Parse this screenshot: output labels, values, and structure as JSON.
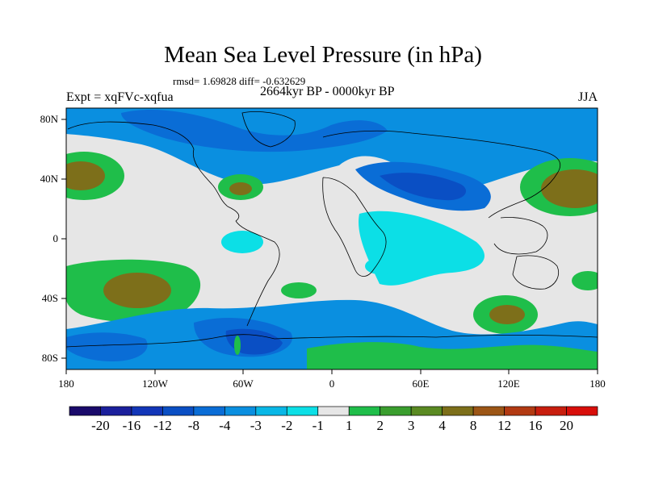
{
  "title": "Mean Sea Level Pressure (in hPa)",
  "stats_line": "rmsd= 1.69828 diff= -0.632629",
  "period": "2664kyr BP - 0000kyr BP",
  "experiment": "Expt = xqFVc-xqfua",
  "season": "JJA",
  "axes": {
    "lat_labels": [
      "80N",
      "40N",
      "0",
      "40S",
      "80S"
    ],
    "lon_labels": [
      "180",
      "120W",
      "60W",
      "0",
      "60E",
      "120E",
      "180"
    ]
  },
  "colorbar": {
    "labels": [
      "-20",
      "-16",
      "-12",
      "-8",
      "-4",
      "-3",
      "-2",
      "-1",
      "1",
      "2",
      "3",
      "4",
      "8",
      "12",
      "16",
      "20"
    ],
    "colors": [
      "#1a0a6b",
      "#1b1f9c",
      "#1236b8",
      "#0a4fc4",
      "#0a6dd6",
      "#0a8fe0",
      "#09b7e6",
      "#0cdfe6",
      "#e6e6e6",
      "#1fbe4a",
      "#3a9e2e",
      "#5a8a22",
      "#7d6f1a",
      "#9c5616",
      "#b23a12",
      "#c81e0e",
      "#d80e0a"
    ]
  },
  "palette": {
    "background": "#e6e6e6",
    "weak_negative": "#0cdfe6",
    "moderate_negative": "#09b7e6",
    "negative": "#0a8fe0",
    "strong_negative": "#0a6dd6",
    "very_strong_negative": "#0a4fc4",
    "weak_positive": "#1fbe4a",
    "positive": "#5a8a22",
    "strong_positive": "#7d6f1a",
    "coast": "#000000"
  }
}
